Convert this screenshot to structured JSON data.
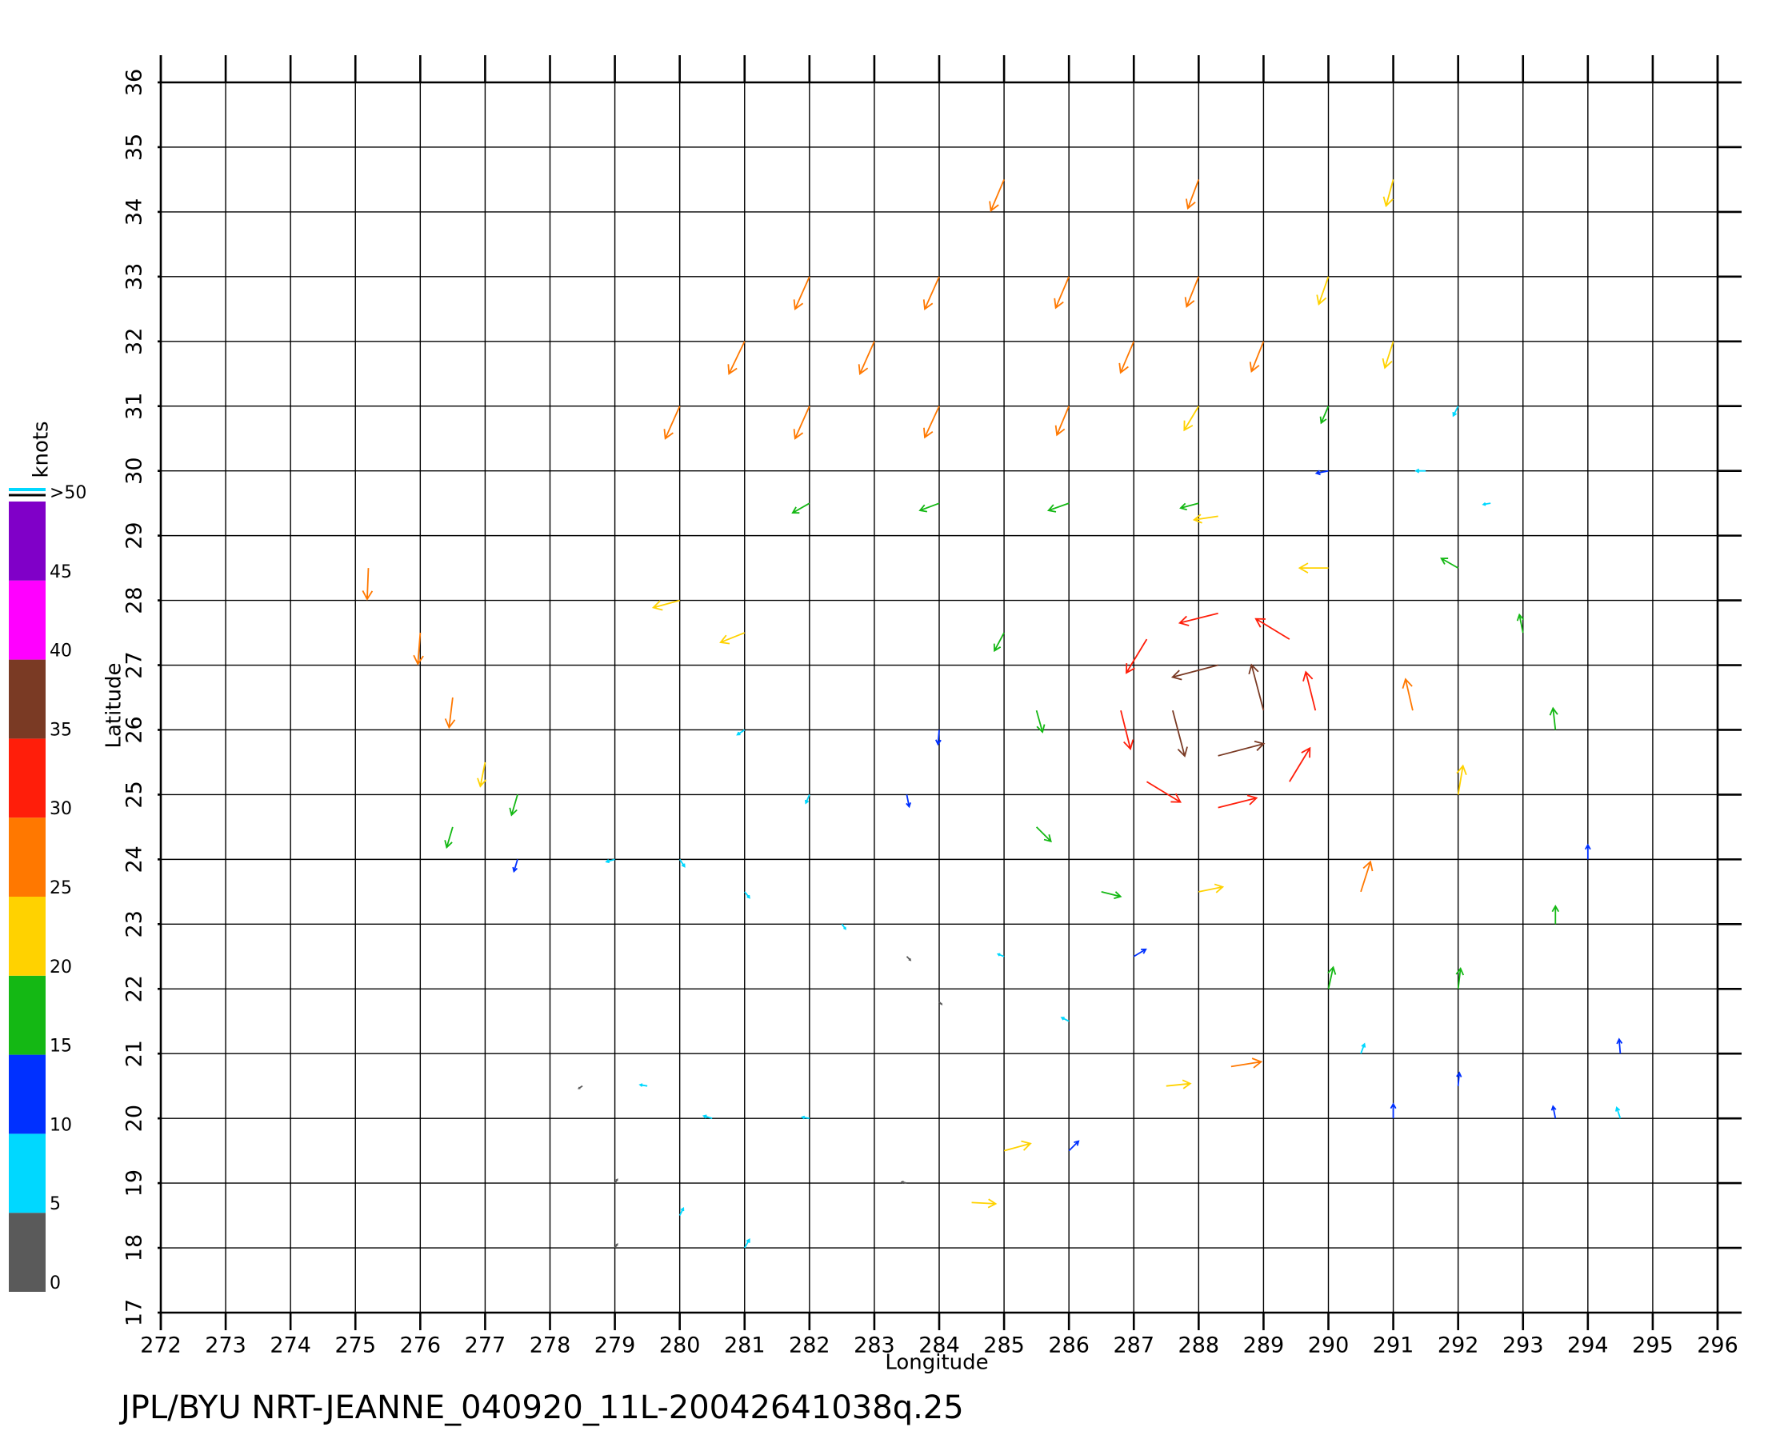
{
  "chart_data": {
    "type": "quiver",
    "footer": "JPL/BYU NRT-JEANNE_040920_11L-20042641038q.25",
    "x_label": "Longitude",
    "y_label": "Latitude",
    "xlim": [
      272,
      296
    ],
    "ylim": [
      17,
      36
    ],
    "xticks": [
      272,
      273,
      274,
      275,
      276,
      277,
      278,
      279,
      280,
      281,
      282,
      283,
      284,
      285,
      286,
      287,
      288,
      289,
      290,
      291,
      292,
      293,
      294,
      295,
      296
    ],
    "yticks": [
      17,
      18,
      19,
      20,
      21,
      22,
      23,
      24,
      25,
      26,
      27,
      28,
      29,
      30,
      31,
      32,
      33,
      34,
      35,
      36
    ],
    "grid": true,
    "colorbar": {
      "label": "knots",
      "bounds": [
        0,
        5,
        10,
        15,
        20,
        25,
        30,
        35,
        40,
        45,
        50
      ],
      "colors": [
        "#5a5a5a",
        "#00d8ff",
        "#0030ff",
        "#14b814",
        "#ffd200",
        "#ff7800",
        "#ff1e0a",
        "#7a3a24",
        "#ff00ff",
        "#8000c8"
      ],
      "ticks": [
        0,
        5,
        10,
        15,
        20,
        25,
        30,
        35,
        40,
        45,
        {
          "value": 50,
          "label": ">50"
        }
      ]
    },
    "x": [
      280,
      282,
      284,
      286,
      282,
      284,
      286,
      288,
      290,
      285,
      288,
      291,
      281,
      283,
      287,
      289,
      291,
      288,
      290,
      292,
      282,
      284,
      286,
      288,
      290,
      291.5,
      292.5,
      275.2,
      276,
      276.5,
      277,
      276.5,
      277.5,
      277.5,
      280,
      281,
      289,
      288.3,
      287.6,
      288.3,
      289.8,
      288.3,
      286.8,
      288.3,
      289.4,
      287.2,
      287.2,
      289.4,
      291.3,
      290.5,
      292,
      290,
      292,
      293.5,
      293.5,
      294,
      294.5,
      293,
      292,
      290,
      288.3,
      285.5,
      285,
      284,
      283.5,
      285.5,
      286.5,
      288,
      287,
      280,
      281,
      282.5,
      283.5,
      285,
      286,
      284,
      282,
      281,
      279,
      278.5,
      279.5,
      280.5,
      279,
      280,
      281,
      279,
      282,
      283.5,
      285,
      284.5,
      288.5,
      287.5,
      286,
      291,
      292,
      293.5,
      294.5,
      290.5
    ],
    "y": [
      31,
      31,
      31,
      31,
      33,
      33,
      33,
      33,
      33,
      34.5,
      34.5,
      34.5,
      32,
      32,
      32,
      32,
      32,
      31,
      31,
      31,
      29.5,
      29.5,
      29.5,
      29.5,
      30,
      30,
      29.5,
      28.5,
      27.5,
      26.5,
      25.5,
      24.5,
      24,
      25,
      28,
      27.5,
      26.3,
      27,
      26.3,
      25.6,
      26.3,
      27.8,
      26.3,
      24.8,
      27.4,
      27.4,
      25.2,
      25.2,
      26.3,
      23.5,
      25,
      22,
      22,
      23,
      26,
      24,
      21,
      27.5,
      28.5,
      28.5,
      29.3,
      26.3,
      27.5,
      26,
      25,
      24.5,
      23.5,
      23.5,
      22.5,
      24,
      23.5,
      23,
      22.5,
      22.5,
      21.5,
      21.8,
      25,
      26,
      24,
      20.5,
      20.5,
      20,
      19,
      18.5,
      18,
      18,
      20,
      19,
      19.5,
      18.7,
      20.8,
      20.5,
      19.5,
      20,
      20.5,
      20,
      20,
      21
    ],
    "u": [
      -12,
      -12,
      -12,
      -10,
      -12,
      -12,
      -11,
      -10,
      -8,
      -11,
      -9,
      -6,
      -13,
      -12,
      -11,
      -10,
      -7,
      -12,
      -6,
      -4,
      -14,
      -16,
      -17,
      -15,
      -10,
      -8,
      -6,
      -1,
      -2,
      -3,
      -4,
      -5,
      -3,
      -5,
      -22,
      -20,
      -10,
      -38,
      10,
      38,
      -8,
      -32,
      8,
      32,
      -28,
      -17,
      28,
      17,
      -6,
      8,
      4,
      4,
      2,
      0,
      -2,
      0,
      -1,
      -3,
      -14,
      -24,
      -20,
      5,
      -8,
      -1,
      2,
      12,
      16,
      20,
      10,
      4,
      4,
      3,
      3,
      -5,
      -6,
      2,
      -3,
      -6,
      -7,
      -3,
      -6,
      -7,
      2,
      3,
      4,
      2,
      -6,
      -4,
      22,
      20,
      25,
      20,
      8,
      0,
      1,
      -2,
      -3,
      3
    ],
    "v": [
      -27,
      -27,
      -26,
      -24,
      -27,
      -27,
      -26,
      -25,
      -23,
      -26,
      -24,
      -22,
      -27,
      -27,
      -26,
      -25,
      -22,
      -20,
      -14,
      -8,
      -8,
      -6,
      -6,
      -4,
      -2,
      0,
      -1,
      -26,
      -26,
      -25,
      -20,
      -17,
      -10,
      -17,
      -6,
      -8,
      38,
      -10,
      -38,
      10,
      32,
      -8,
      -32,
      8,
      17,
      -28,
      -17,
      28,
      26,
      25,
      24,
      18,
      17,
      15,
      18,
      12,
      12,
      15,
      8,
      0,
      -3,
      -18,
      -15,
      -12,
      -10,
      -12,
      -4,
      4,
      6,
      -6,
      -5,
      -4,
      -3,
      2,
      3,
      -2,
      -7,
      -4,
      -2,
      -2,
      1,
      2,
      3,
      6,
      7,
      3,
      1,
      1,
      6,
      -1,
      4,
      2,
      8,
      12,
      11,
      10,
      9,
      8
    ]
  }
}
